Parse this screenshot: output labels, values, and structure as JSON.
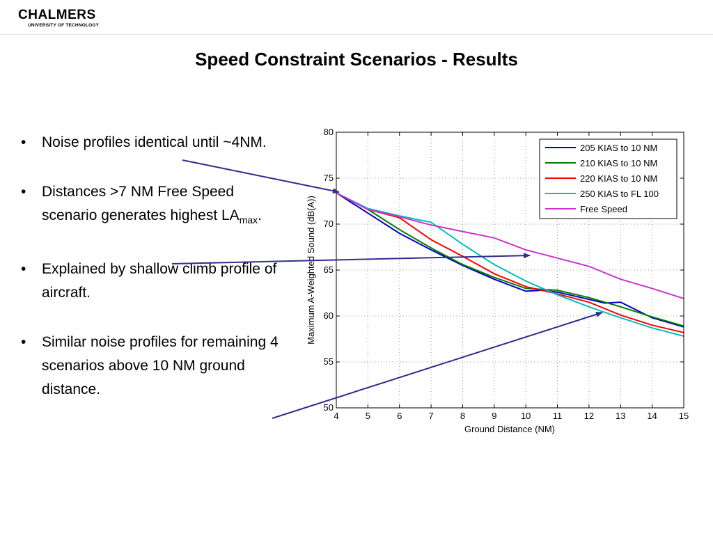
{
  "logo": {
    "name": "CHALMERS",
    "subtitle": "UNIVERSITY OF TECHNOLOGY"
  },
  "slide": {
    "title": "Speed Constraint Scenarios - Results"
  },
  "bullets": [
    {
      "text": "Noise profiles identical until ~4NM."
    },
    {
      "text_before": "Distances >7 NM Free Speed scenario generates highest LA",
      "subscript": "max",
      "text_after": "."
    },
    {
      "text": "Explained by shallow climb profile of aircraft."
    },
    {
      "text": "Similar noise profiles for remaining 4 scenarios above 10 NM ground distance."
    }
  ],
  "arrow_color": "#2e2e8c",
  "chart_data": {
    "type": "line",
    "title": "",
    "xlabel": "Ground Distance (NM)",
    "ylabel": "Maximum A-Weighted Sound (dB(A))",
    "xlim": [
      4,
      15
    ],
    "ylim": [
      50,
      80
    ],
    "xticks": [
      "4",
      "5",
      "6",
      "7",
      "8",
      "9",
      "10",
      "11",
      "12",
      "13",
      "14",
      "15"
    ],
    "yticks": [
      "50",
      "55",
      "60",
      "65",
      "70",
      "75",
      "80"
    ],
    "grid": true,
    "legend_position": "top-right",
    "series": [
      {
        "name": "205 KIAS to 10 NM",
        "color": "#0000cc",
        "points": [
          [
            4,
            73.4
          ],
          [
            5,
            71.2
          ],
          [
            6,
            69.0
          ],
          [
            7,
            67.2
          ],
          [
            8,
            65.5
          ],
          [
            9,
            64.0
          ],
          [
            10,
            62.7
          ],
          [
            10.5,
            62.8
          ],
          [
            11,
            62.6
          ],
          [
            12,
            61.8
          ],
          [
            12.5,
            61.4
          ],
          [
            13,
            61.5
          ],
          [
            14,
            59.8
          ],
          [
            15,
            58.8
          ]
        ]
      },
      {
        "name": "210 KIAS to 10 NM",
        "color": "#008000",
        "points": [
          [
            4,
            73.4
          ],
          [
            5,
            71.6
          ],
          [
            6,
            69.4
          ],
          [
            7,
            67.4
          ],
          [
            8,
            65.6
          ],
          [
            9,
            64.2
          ],
          [
            10,
            63.0
          ],
          [
            11,
            62.8
          ],
          [
            12,
            62.0
          ],
          [
            13,
            61.0
          ],
          [
            14,
            59.9
          ],
          [
            15,
            58.9
          ]
        ]
      },
      {
        "name": "220 KIAS to 10 NM",
        "color": "#ff0000",
        "points": [
          [
            4,
            73.4
          ],
          [
            5,
            71.6
          ],
          [
            6,
            70.7
          ],
          [
            7,
            68.3
          ],
          [
            8,
            66.5
          ],
          [
            9,
            64.6
          ],
          [
            10,
            63.2
          ],
          [
            11,
            62.4
          ],
          [
            12,
            61.5
          ],
          [
            13,
            60.1
          ],
          [
            14,
            59.0
          ],
          [
            15,
            58.2
          ]
        ]
      },
      {
        "name": "250 KIAS to FL 100",
        "color": "#00c0c0",
        "points": [
          [
            4,
            73.4
          ],
          [
            5,
            71.7
          ],
          [
            6,
            70.9
          ],
          [
            7,
            70.2
          ],
          [
            8,
            67.8
          ],
          [
            9,
            65.6
          ],
          [
            10,
            63.8
          ],
          [
            11,
            62.3
          ],
          [
            12,
            61.0
          ],
          [
            13,
            59.8
          ],
          [
            14,
            58.7
          ],
          [
            15,
            57.8
          ]
        ]
      },
      {
        "name": "Free Speed",
        "color": "#cc33cc",
        "points": [
          [
            4,
            73.4
          ],
          [
            5,
            71.6
          ],
          [
            6,
            70.8
          ],
          [
            7,
            69.9
          ],
          [
            8,
            69.2
          ],
          [
            9,
            68.5
          ],
          [
            10,
            67.2
          ],
          [
            11,
            66.3
          ],
          [
            12,
            65.4
          ],
          [
            13,
            64.0
          ],
          [
            14,
            63.0
          ],
          [
            15,
            61.9
          ]
        ]
      }
    ]
  }
}
